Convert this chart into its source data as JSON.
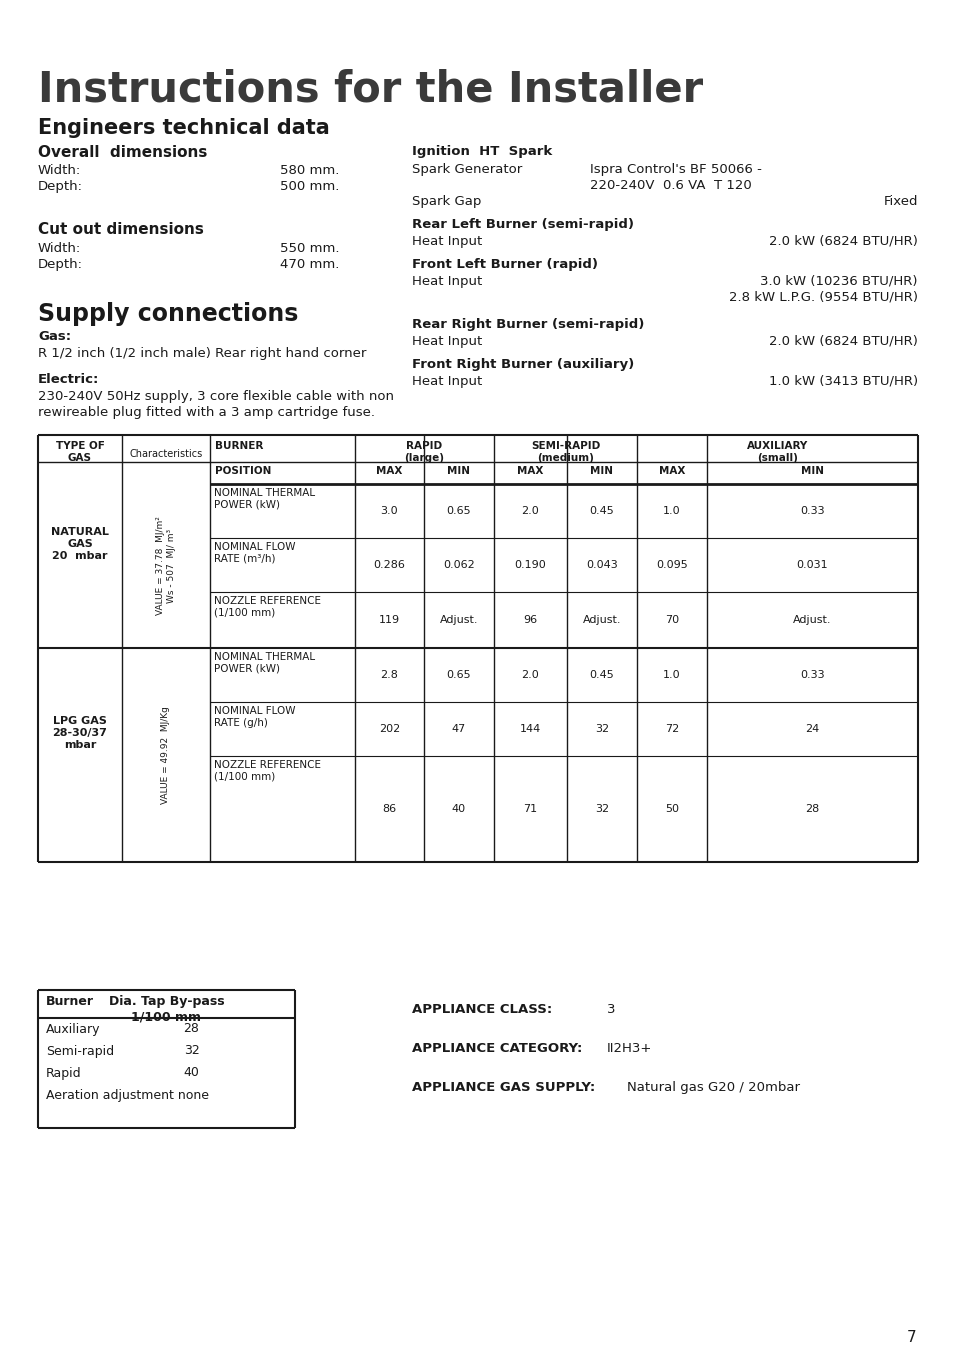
{
  "title": "Instructions for the Installer",
  "bg_color": "#ffffff",
  "page_number": "7",
  "section1_title": "Engineers technical data",
  "overall_dim_title": "Overall  dimensions",
  "cutout_dim_title": "Cut out dimensions",
  "supply_title": "Supply connections",
  "gas_label": "Gas:",
  "gas_text": "R 1/2 inch (1/2 inch male) Rear right hand corner",
  "electric_label": "Electric:",
  "electric_text1": "230-240V 50Hz supply, 3 core flexible cable with non",
  "electric_text2": "rewireable plug fitted with a 3 amp cartridge fuse.",
  "ignition_title": "Ignition  HT  Spark",
  "spark_gen_label": "Spark Generator",
  "spark_gen_val1": "Ispra Control's BF 50066 -",
  "spark_gen_val2": "220-240V  0.6 VA  T 120",
  "spark_gap_label": "Spark Gap",
  "spark_gap_value": "Fixed",
  "rear_left_title": "Rear Left Burner (semi-rapid)",
  "rear_left_value": "2.0 kW (6824 BTU/HR)",
  "front_left_title": "Front Left Burner (rapid)",
  "front_left_value1": "3.0 kW (10236 BTU/HR)",
  "front_left_value2": "2.8 kW L.P.G. (9554 BTU/HR)",
  "rear_right_title": "Rear Right Burner (semi-rapid)",
  "rear_right_value": "2.0 kW (6824 BTU/HR)",
  "front_right_title": "Front Right Burner (auxiliary)",
  "front_right_value": "1.0 kW (3413 BTU/HR)",
  "natural_gas_rows": [
    [
      "NOMINAL THERMAL\nPOWER (kW)",
      "3.0",
      "0.65",
      "2.0",
      "0.45",
      "1.0",
      "0.33"
    ],
    [
      "NOMINAL FLOW\nRATE (m³/h)",
      "0.286",
      "0.062",
      "0.190",
      "0.043",
      "0.095",
      "0.031"
    ],
    [
      "NOZZLE REFERENCE\n(1/100 mm)",
      "119",
      "Adjust.",
      "96",
      "Adjust.",
      "70",
      "Adjust."
    ]
  ],
  "lpg_gas_rows": [
    [
      "NOMINAL THERMAL\nPOWER (kW)",
      "2.8",
      "0.65",
      "2.0",
      "0.45",
      "1.0",
      "0.33"
    ],
    [
      "NOMINAL FLOW\nRATE (g/h)",
      "202",
      "47",
      "144",
      "32",
      "72",
      "24"
    ],
    [
      "NOZZLE REFERENCE\n(1/100 mm)",
      "86",
      "40",
      "71",
      "32",
      "50",
      "28"
    ]
  ],
  "bypass_rows": [
    [
      "Auxiliary",
      "28"
    ],
    [
      "Semi-rapid",
      "32"
    ],
    [
      "Rapid",
      "40"
    ],
    [
      "Aeration adjustment none",
      ""
    ]
  ],
  "appliance_class_label": "APPLIANCE CLASS:",
  "appliance_class_value": "3",
  "appliance_cat_label": "APPLIANCE CATEGORY:",
  "appliance_cat_value": "II2H3+",
  "appliance_gas_label": "APPLIANCE GAS SUPPLY:",
  "appliance_gas_value": "Natural gas G20 / 20mbar"
}
